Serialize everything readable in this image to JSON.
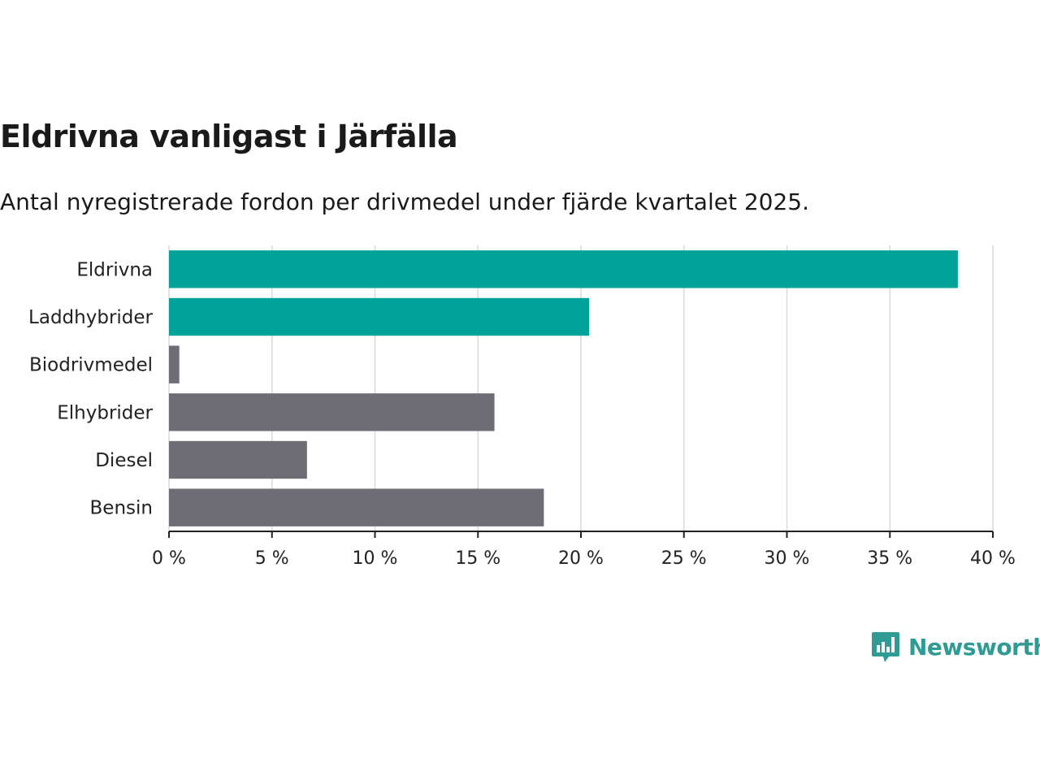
{
  "chart_data": {
    "type": "bar",
    "orientation": "horizontal",
    "title": "Eldrivna vanligast i Järfälla",
    "subtitle": "Antal nyregistrerade fordon per drivmedel under fjärde kvartalet 2025.",
    "categories": [
      "Eldrivna",
      "Laddhybrider",
      "Biodrivmedel",
      "Elhybrider",
      "Diesel",
      "Bensin"
    ],
    "values": [
      38.3,
      20.4,
      0.5,
      15.8,
      6.7,
      18.2
    ],
    "colors": [
      "#00a398",
      "#00a398",
      "#6e6d75",
      "#6e6d75",
      "#6e6d75",
      "#6e6d75"
    ],
    "xlim": [
      0,
      40
    ],
    "xticks": [
      0,
      5,
      10,
      15,
      20,
      25,
      30,
      35,
      40
    ],
    "xtick_labels": [
      "0 %",
      "5 %",
      "10 %",
      "15 %",
      "20 %",
      "25 %",
      "30 %",
      "35 %",
      "40 %"
    ],
    "xlabel": "",
    "ylabel": "",
    "grid": true
  },
  "brand": {
    "name": "Newsworthy",
    "color": "#2e9c94"
  },
  "icons": {
    "logo": "newsworthy-chart-bubble-icon"
  }
}
